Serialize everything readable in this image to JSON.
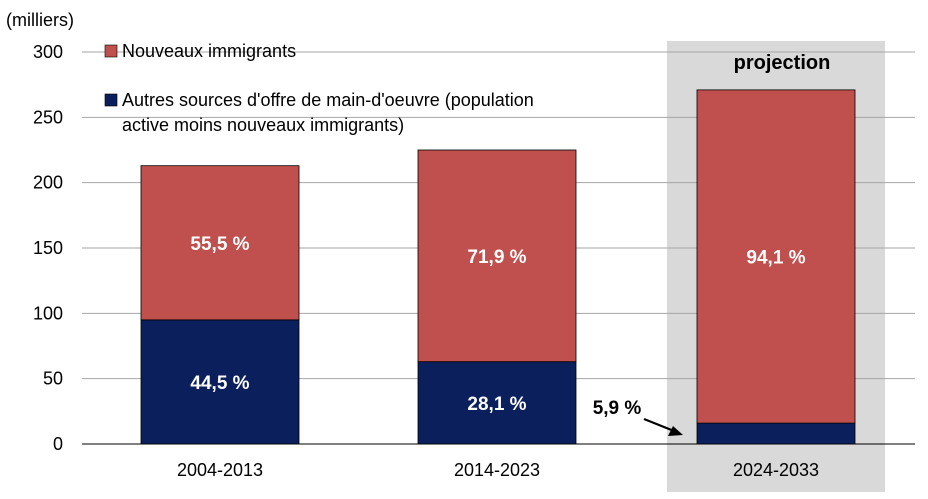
{
  "chart_data": {
    "type": "bar",
    "stacked": true,
    "unit_label": "(milliers)",
    "categories": [
      "2004-2013",
      "2014-2023",
      "2024-2033"
    ],
    "series": [
      {
        "name": "Autres sources d'offre de main-d'oeuvre (population active moins nouveaux immigrants)",
        "color": "#0a1f5c",
        "values": [
          95,
          63,
          16
        ],
        "labels": [
          "44,5 %",
          "28,1 %",
          "5,9 %"
        ]
      },
      {
        "name": "Nouveaux immigrants",
        "color": "#c0504d",
        "values": [
          118,
          162,
          255
        ],
        "labels": [
          "55,5 %",
          "71,9 %",
          "94,1 %"
        ]
      }
    ],
    "ylim": [
      0,
      300
    ],
    "yticks": [
      0,
      50,
      100,
      150,
      200,
      250,
      300
    ],
    "grid": true,
    "legend_placement": "top-left",
    "projection_label": "projection",
    "projection_category": "2024-2033",
    "projection_shade": "#d9d9d9"
  }
}
